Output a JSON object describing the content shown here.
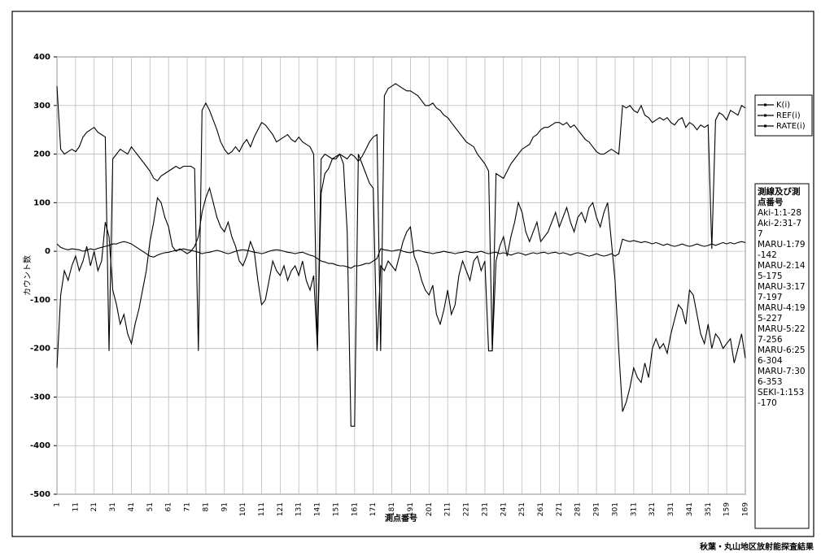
{
  "chart_data": {
    "type": "line",
    "y_label": "カウント数",
    "x_label": "測点番号",
    "caption": "秋葉・丸山地区放射能探査結果",
    "notes": {
      "title": "測線及び測点番号",
      "lines": [
        "Aki-1:1-28",
        "Aki-2:31-77",
        "MARU-1:79-142",
        "MARU-2:145-175",
        "MARU-3:177-197",
        "MARU-4:195-227",
        "MARU-5:227-256",
        "MARU-6:256-304",
        "MARU-7:306-353",
        "SEKI-1:153-170"
      ]
    },
    "categories": [
      "1",
      null,
      null,
      null,
      null,
      "11",
      null,
      null,
      null,
      null,
      "21",
      null,
      null,
      null,
      null,
      "31",
      null,
      null,
      null,
      null,
      "41",
      null,
      null,
      null,
      null,
      "51",
      null,
      null,
      null,
      null,
      "61",
      null,
      null,
      null,
      null,
      "71",
      null,
      null,
      null,
      null,
      "81",
      null,
      null,
      null,
      null,
      "91",
      null,
      null,
      null,
      null,
      "101",
      null,
      null,
      null,
      null,
      "111",
      null,
      null,
      null,
      null,
      "121",
      null,
      null,
      null,
      null,
      "131",
      null,
      null,
      null,
      null,
      "141",
      null,
      null,
      null,
      null,
      "151",
      null,
      null,
      null,
      null,
      "161",
      null,
      null,
      null,
      null,
      "171",
      null,
      null,
      null,
      null,
      "181",
      null,
      null,
      null,
      null,
      "191",
      null,
      null,
      null,
      null,
      "201",
      null,
      null,
      null,
      null,
      "211",
      null,
      null,
      null,
      null,
      "221",
      null,
      null,
      null,
      null,
      "231",
      null,
      null,
      null,
      null,
      "241",
      null,
      null,
      null,
      null,
      "251",
      null,
      null,
      null,
      null,
      "261",
      null,
      null,
      null,
      null,
      "271",
      null,
      null,
      null,
      null,
      "281",
      null,
      null,
      null,
      null,
      "291",
      null,
      null,
      null,
      null,
      "301",
      null,
      null,
      null,
      null,
      "311",
      null,
      null,
      null,
      null,
      "321",
      null,
      null,
      null,
      null,
      "331",
      null,
      null,
      null,
      null,
      "341",
      null,
      null,
      null,
      null,
      "351",
      null,
      null,
      null,
      null,
      "159",
      null,
      null,
      null,
      null,
      "169"
    ],
    "series": [
      {
        "name": "K(i)",
        "color": "#000000",
        "values": [
          -240,
          -90,
          -40,
          -60,
          -30,
          -10,
          -40,
          -20,
          10,
          -30,
          0,
          -40,
          -20,
          60,
          30,
          -80,
          -110,
          -150,
          -130,
          -170,
          -190,
          -150,
          -120,
          -80,
          -40,
          20,
          60,
          110,
          100,
          70,
          50,
          10,
          0,
          5,
          0,
          -5,
          0,
          10,
          30,
          80,
          110,
          130,
          100,
          70,
          50,
          40,
          60,
          30,
          10,
          -20,
          -30,
          -10,
          20,
          0,
          -60,
          -110,
          -100,
          -60,
          -20,
          -40,
          -50,
          -30,
          -60,
          -40,
          -30,
          -50,
          -20,
          -60,
          -80,
          -50,
          -200,
          120,
          160,
          170,
          190,
          190,
          200,
          180,
          40,
          -360,
          -360,
          200,
          180,
          160,
          140,
          130,
          -205,
          -30,
          -40,
          -20,
          -30,
          -40,
          -10,
          20,
          40,
          50,
          -10,
          -30,
          -60,
          -80,
          -90,
          -70,
          -130,
          -150,
          -120,
          -80,
          -130,
          -110,
          -50,
          -20,
          -40,
          -60,
          -20,
          -10,
          -40,
          -20,
          -205,
          -205,
          -20,
          10,
          30,
          -10,
          30,
          60,
          100,
          80,
          40,
          20,
          40,
          60,
          20,
          30,
          40,
          60,
          80,
          50,
          70,
          90,
          60,
          40,
          70,
          80,
          60,
          90,
          100,
          70,
          50,
          80,
          100,
          20,
          -60,
          -205,
          -330,
          -310,
          -280,
          -240,
          -260,
          -270,
          -230,
          -260,
          -200,
          -180,
          -200,
          -190,
          -210,
          -170,
          -140,
          -110,
          -120,
          -150,
          -80,
          -90,
          -130,
          -170,
          -190,
          -150,
          -200,
          -170,
          -180,
          -200,
          -190,
          -180,
          -230,
          -200,
          -170,
          -220
        ]
      },
      {
        "name": "REF(i)",
        "color": "#000000",
        "values": [
          340,
          210,
          200,
          205,
          210,
          205,
          215,
          235,
          245,
          250,
          255,
          245,
          240,
          235,
          -205,
          190,
          200,
          210,
          205,
          200,
          215,
          205,
          195,
          185,
          175,
          165,
          150,
          145,
          155,
          160,
          165,
          170,
          175,
          170,
          175,
          175,
          175,
          170,
          -205,
          290,
          305,
          290,
          270,
          250,
          225,
          210,
          200,
          205,
          215,
          205,
          220,
          230,
          215,
          235,
          250,
          265,
          260,
          250,
          240,
          225,
          230,
          235,
          240,
          230,
          225,
          235,
          225,
          220,
          215,
          200,
          -205,
          190,
          200,
          195,
          190,
          195,
          200,
          195,
          190,
          200,
          195,
          185,
          195,
          210,
          225,
          235,
          240,
          -205,
          320,
          335,
          340,
          345,
          340,
          335,
          330,
          330,
          325,
          320,
          310,
          300,
          300,
          305,
          295,
          290,
          280,
          275,
          265,
          255,
          245,
          235,
          225,
          220,
          215,
          200,
          190,
          180,
          165,
          -205,
          160,
          155,
          150,
          165,
          180,
          190,
          200,
          210,
          215,
          220,
          235,
          240,
          250,
          255,
          255,
          260,
          265,
          265,
          260,
          265,
          255,
          260,
          250,
          240,
          230,
          225,
          215,
          205,
          200,
          200,
          205,
          210,
          205,
          200,
          300,
          295,
          300,
          290,
          285,
          300,
          280,
          275,
          265,
          270,
          275,
          270,
          275,
          265,
          260,
          270,
          275,
          255,
          265,
          260,
          250,
          260,
          255,
          260,
          5,
          270,
          285,
          280,
          270,
          290,
          285,
          280,
          300,
          295
        ]
      },
      {
        "name": "RATE(i)",
        "color": "#000000",
        "values": [
          15,
          8,
          5,
          3,
          5,
          4,
          3,
          0,
          2,
          5,
          3,
          6,
          8,
          10,
          12,
          15,
          15,
          18,
          20,
          18,
          15,
          10,
          5,
          0,
          -5,
          -10,
          -12,
          -8,
          -5,
          -3,
          -2,
          0,
          2,
          3,
          5,
          3,
          2,
          0,
          -2,
          -5,
          -3,
          -2,
          0,
          2,
          0,
          -3,
          -5,
          -3,
          0,
          2,
          3,
          2,
          0,
          -2,
          -3,
          -5,
          -3,
          0,
          2,
          3,
          2,
          0,
          -2,
          -3,
          -5,
          -3,
          -2,
          -5,
          -8,
          -10,
          -15,
          -20,
          -22,
          -25,
          -25,
          -28,
          -30,
          -30,
          -32,
          -35,
          -30,
          -30,
          -28,
          -25,
          -25,
          -20,
          -15,
          5,
          3,
          2,
          0,
          2,
          3,
          0,
          -2,
          -3,
          0,
          2,
          0,
          -2,
          -3,
          -5,
          -3,
          -2,
          0,
          -2,
          -3,
          -5,
          -3,
          -2,
          0,
          -2,
          -3,
          -2,
          0,
          -3,
          -5,
          -3,
          -2,
          -5,
          -3,
          -5,
          -8,
          -5,
          -3,
          -5,
          -8,
          -5,
          -3,
          -5,
          -3,
          -2,
          -5,
          -3,
          -2,
          -5,
          -3,
          -5,
          -8,
          -5,
          -3,
          -5,
          -8,
          -10,
          -8,
          -5,
          -8,
          -10,
          -8,
          -5,
          -10,
          -5,
          25,
          22,
          20,
          22,
          20,
          18,
          20,
          18,
          15,
          18,
          15,
          12,
          15,
          12,
          10,
          12,
          15,
          12,
          10,
          12,
          15,
          12,
          10,
          12,
          15,
          12,
          15,
          18,
          15,
          18,
          15,
          18,
          20,
          18
        ]
      }
    ],
    "ylim": [
      -500,
      400
    ],
    "yticks": [
      -500,
      -400,
      -300,
      -200,
      -100,
      0,
      100,
      200,
      300,
      400
    ],
    "grid": true
  }
}
